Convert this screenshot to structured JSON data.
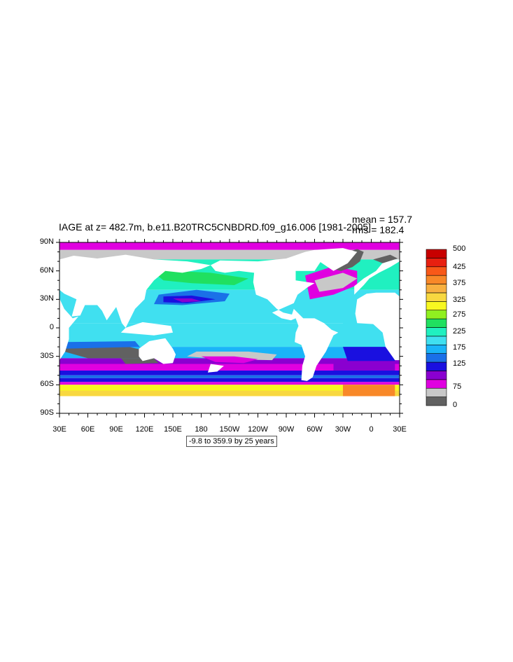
{
  "figure": {
    "title": "IAGE at z= 482.7m, b.e11.B20TRC5CNBDRD.f09_g16.006 [1981-2005]",
    "mean_text": "mean = 157.7",
    "rms_text": "rms = 182.4",
    "info_text": "-9.8 to 359.9 by 25 years"
  },
  "map": {
    "projection": "cylindrical-equidistant",
    "lon_range": [
      30,
      390
    ],
    "lat_range": [
      -90,
      90
    ],
    "y_tick_labels": [
      "90N",
      "60N",
      "30N",
      "0",
      "30S",
      "60S",
      "90S"
    ],
    "x_tick_labels": [
      "30E",
      "60E",
      "90E",
      "120E",
      "150E",
      "180",
      "150W",
      "120W",
      "90W",
      "60W",
      "30W",
      "0",
      "30E"
    ],
    "land_color": "#ffffff"
  },
  "colorbar": {
    "labels": [
      "500",
      "425",
      "375",
      "325",
      "275",
      "225",
      "175",
      "125",
      "75",
      "0"
    ],
    "colors": [
      "#616161",
      "#c8c8c8",
      "#e000e0",
      "#8a00d0",
      "#1a10e0",
      "#1a70e8",
      "#1ab4f8",
      "#40e0f0",
      "#20f0c0",
      "#20e060",
      "#90f020",
      "#f8f820",
      "#f8d840",
      "#f8b040",
      "#f88828",
      "#f85818",
      "#e82010",
      "#c80000"
    ]
  }
}
